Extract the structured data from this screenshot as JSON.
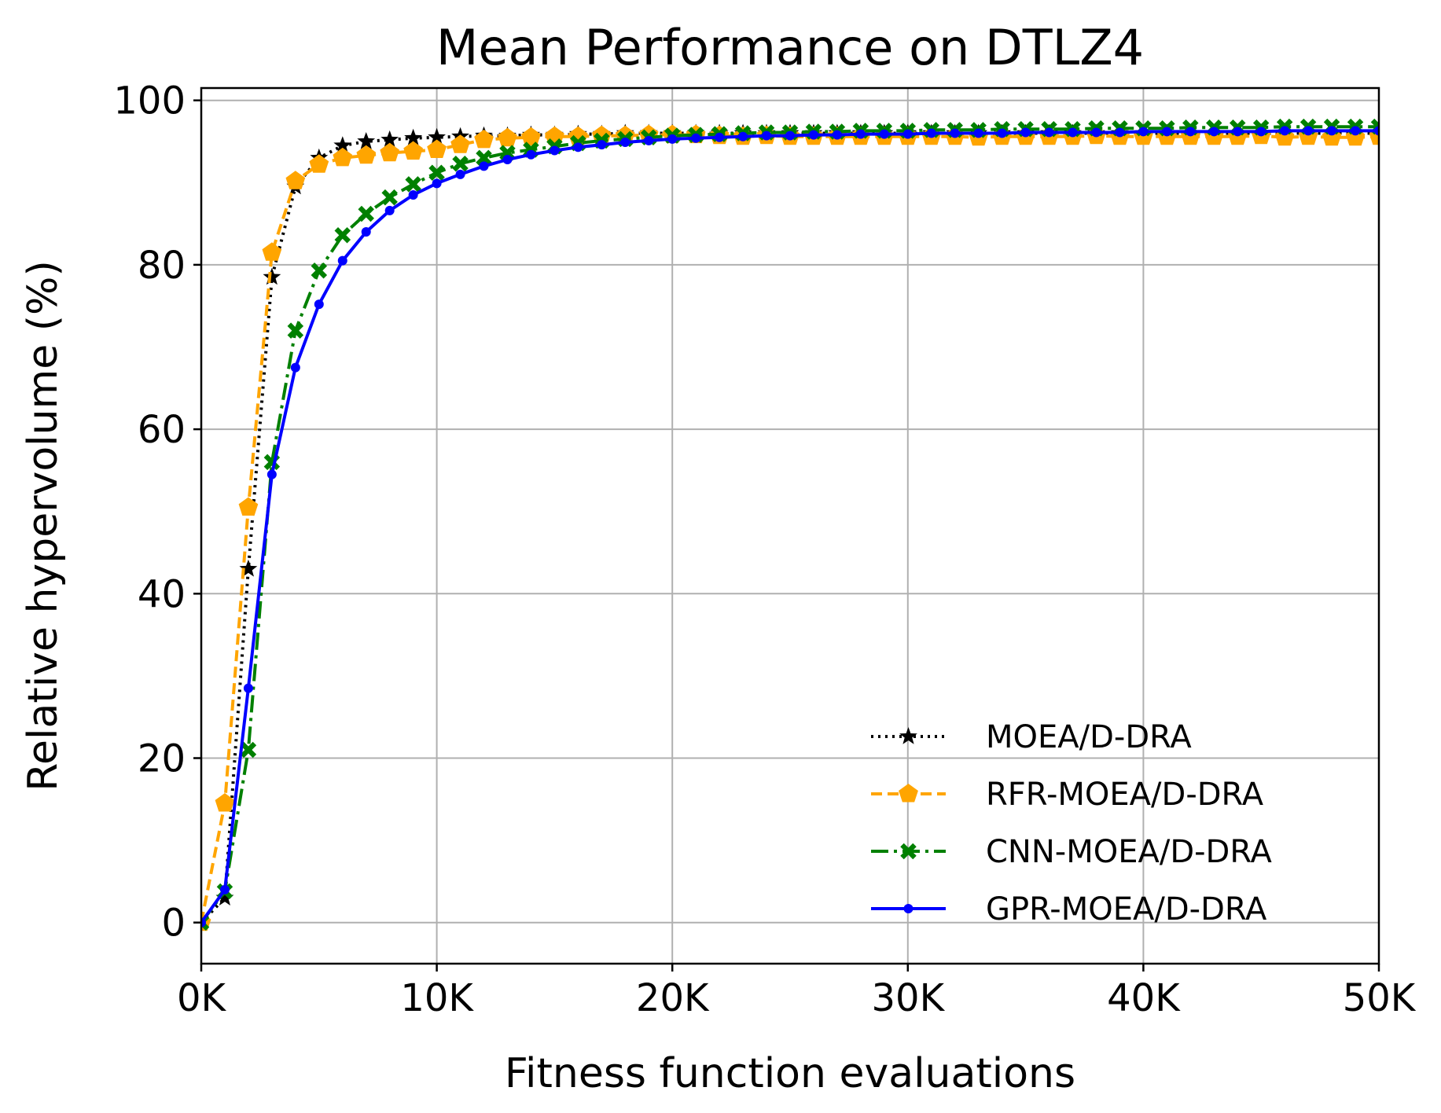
{
  "chart_data": {
    "type": "line",
    "title": "Mean Performance on DTLZ4",
    "xlabel": "Fitness function evaluations",
    "ylabel": "Relative hypervolume (%)",
    "xlim": [
      0,
      50000
    ],
    "ylim": [
      -5,
      101.5
    ],
    "grid": true,
    "legend_position": "lower-right",
    "x_ticks": [
      {
        "value": 0,
        "label": "0K"
      },
      {
        "value": 10000,
        "label": "10K"
      },
      {
        "value": 20000,
        "label": "20K"
      },
      {
        "value": 30000,
        "label": "30K"
      },
      {
        "value": 40000,
        "label": "40K"
      },
      {
        "value": 50000,
        "label": "50K"
      }
    ],
    "y_ticks": [
      {
        "value": 0,
        "label": "0"
      },
      {
        "value": 20,
        "label": "20"
      },
      {
        "value": 40,
        "label": "40"
      },
      {
        "value": 60,
        "label": "60"
      },
      {
        "value": 80,
        "label": "80"
      },
      {
        "value": 100,
        "label": "100"
      }
    ],
    "series": [
      {
        "name": "MOEA/D-DRA",
        "color": "#000000",
        "dash": "dotted",
        "marker": "star",
        "x": [
          0,
          1000,
          2000,
          3000,
          4000,
          5000,
          6000,
          7000,
          8000,
          9000,
          10000,
          11000,
          12000,
          13000,
          14000,
          15000,
          16000,
          17000,
          18000,
          19000,
          20000,
          21000,
          22000,
          23000,
          24000,
          25000,
          26000,
          27000,
          28000,
          29000,
          30000,
          31000,
          32000,
          33000,
          34000,
          35000,
          36000,
          37000,
          38000,
          39000,
          40000,
          41000,
          42000,
          43000,
          44000,
          45000,
          46000,
          47000,
          48000,
          49000,
          50000
        ],
        "y": [
          0,
          3,
          43,
          78.5,
          89.5,
          93,
          94.5,
          95,
          95.2,
          95.4,
          95.5,
          95.6,
          95.7,
          95.7,
          95.8,
          95.8,
          95.9,
          95.9,
          96,
          96,
          96,
          96,
          96,
          96,
          96,
          96,
          96,
          96,
          96,
          96,
          96,
          96,
          96,
          96,
          96,
          96,
          96,
          96,
          96,
          96,
          96,
          96,
          96,
          96,
          96,
          96,
          96,
          96,
          96,
          96,
          96
        ]
      },
      {
        "name": "RFR-MOEA/D-DRA",
        "color": "#FFA500",
        "dash": "dashed",
        "marker": "pentagon",
        "x": [
          0,
          1000,
          2000,
          3000,
          4000,
          5000,
          6000,
          7000,
          8000,
          9000,
          10000,
          11000,
          12000,
          13000,
          14000,
          15000,
          16000,
          17000,
          18000,
          19000,
          20000,
          21000,
          22000,
          23000,
          24000,
          25000,
          26000,
          27000,
          28000,
          29000,
          30000,
          31000,
          32000,
          33000,
          34000,
          35000,
          36000,
          37000,
          38000,
          39000,
          40000,
          41000,
          42000,
          43000,
          44000,
          45000,
          46000,
          47000,
          48000,
          49000,
          50000
        ],
        "y": [
          0,
          14.5,
          50.5,
          81.5,
          90.2,
          92.2,
          93,
          93.3,
          93.6,
          93.8,
          94,
          94.6,
          95.2,
          95.4,
          95.5,
          95.6,
          95.6,
          95.7,
          95.7,
          95.8,
          95.8,
          95.8,
          95.7,
          95.6,
          95.7,
          95.6,
          95.6,
          95.6,
          95.6,
          95.6,
          95.6,
          95.6,
          95.6,
          95.5,
          95.6,
          95.6,
          95.6,
          95.6,
          95.7,
          95.6,
          95.6,
          95.6,
          95.6,
          95.6,
          95.6,
          95.7,
          95.5,
          95.6,
          95.5,
          95.5,
          95.6
        ]
      },
      {
        "name": "CNN-MOEA/D-DRA",
        "color": "#008000",
        "dash": "dashdot",
        "marker": "x",
        "x": [
          0,
          1000,
          2000,
          3000,
          4000,
          5000,
          6000,
          7000,
          8000,
          9000,
          10000,
          11000,
          12000,
          13000,
          14000,
          15000,
          16000,
          17000,
          18000,
          19000,
          20000,
          21000,
          22000,
          23000,
          24000,
          25000,
          26000,
          27000,
          28000,
          29000,
          30000,
          31000,
          32000,
          33000,
          34000,
          35000,
          36000,
          37000,
          38000,
          39000,
          40000,
          41000,
          42000,
          43000,
          44000,
          45000,
          46000,
          47000,
          48000,
          49000,
          50000
        ],
        "y": [
          0,
          3.8,
          21,
          56,
          72,
          79.3,
          83.6,
          86.2,
          88.2,
          89.8,
          91.2,
          92.3,
          93,
          93.6,
          94,
          94.4,
          94.8,
          95.1,
          95.3,
          95.5,
          95.7,
          95.8,
          95.9,
          96,
          96.1,
          96.1,
          96.2,
          96.2,
          96.3,
          96.3,
          96.3,
          96.4,
          96.4,
          96.4,
          96.5,
          96.5,
          96.5,
          96.5,
          96.6,
          96.6,
          96.6,
          96.6,
          96.7,
          96.7,
          96.7,
          96.7,
          96.8,
          96.8,
          96.8,
          96.8,
          96.8
        ]
      },
      {
        "name": "GPR-MOEA/D-DRA",
        "color": "#0000FF",
        "dash": "solid",
        "marker": "dot",
        "x": [
          0,
          1000,
          2000,
          3000,
          4000,
          5000,
          6000,
          7000,
          8000,
          9000,
          10000,
          11000,
          12000,
          13000,
          14000,
          15000,
          16000,
          17000,
          18000,
          19000,
          20000,
          21000,
          22000,
          23000,
          24000,
          25000,
          26000,
          27000,
          28000,
          29000,
          30000,
          31000,
          32000,
          33000,
          34000,
          35000,
          36000,
          37000,
          38000,
          39000,
          40000,
          41000,
          42000,
          43000,
          44000,
          45000,
          46000,
          47000,
          48000,
          49000,
          50000
        ],
        "y": [
          0,
          4,
          28.5,
          54.5,
          67.5,
          75.2,
          80.5,
          84,
          86.6,
          88.5,
          89.9,
          91,
          92,
          92.8,
          93.4,
          93.9,
          94.3,
          94.6,
          94.9,
          95.1,
          95.3,
          95.4,
          95.5,
          95.6,
          95.7,
          95.7,
          95.8,
          95.8,
          95.9,
          95.9,
          95.9,
          96,
          96,
          96,
          96,
          96.1,
          96.1,
          96.1,
          96.1,
          96.1,
          96.2,
          96.2,
          96.2,
          96.2,
          96.2,
          96.2,
          96.3,
          96.3,
          96.3,
          96.3,
          96.3
        ]
      }
    ]
  }
}
